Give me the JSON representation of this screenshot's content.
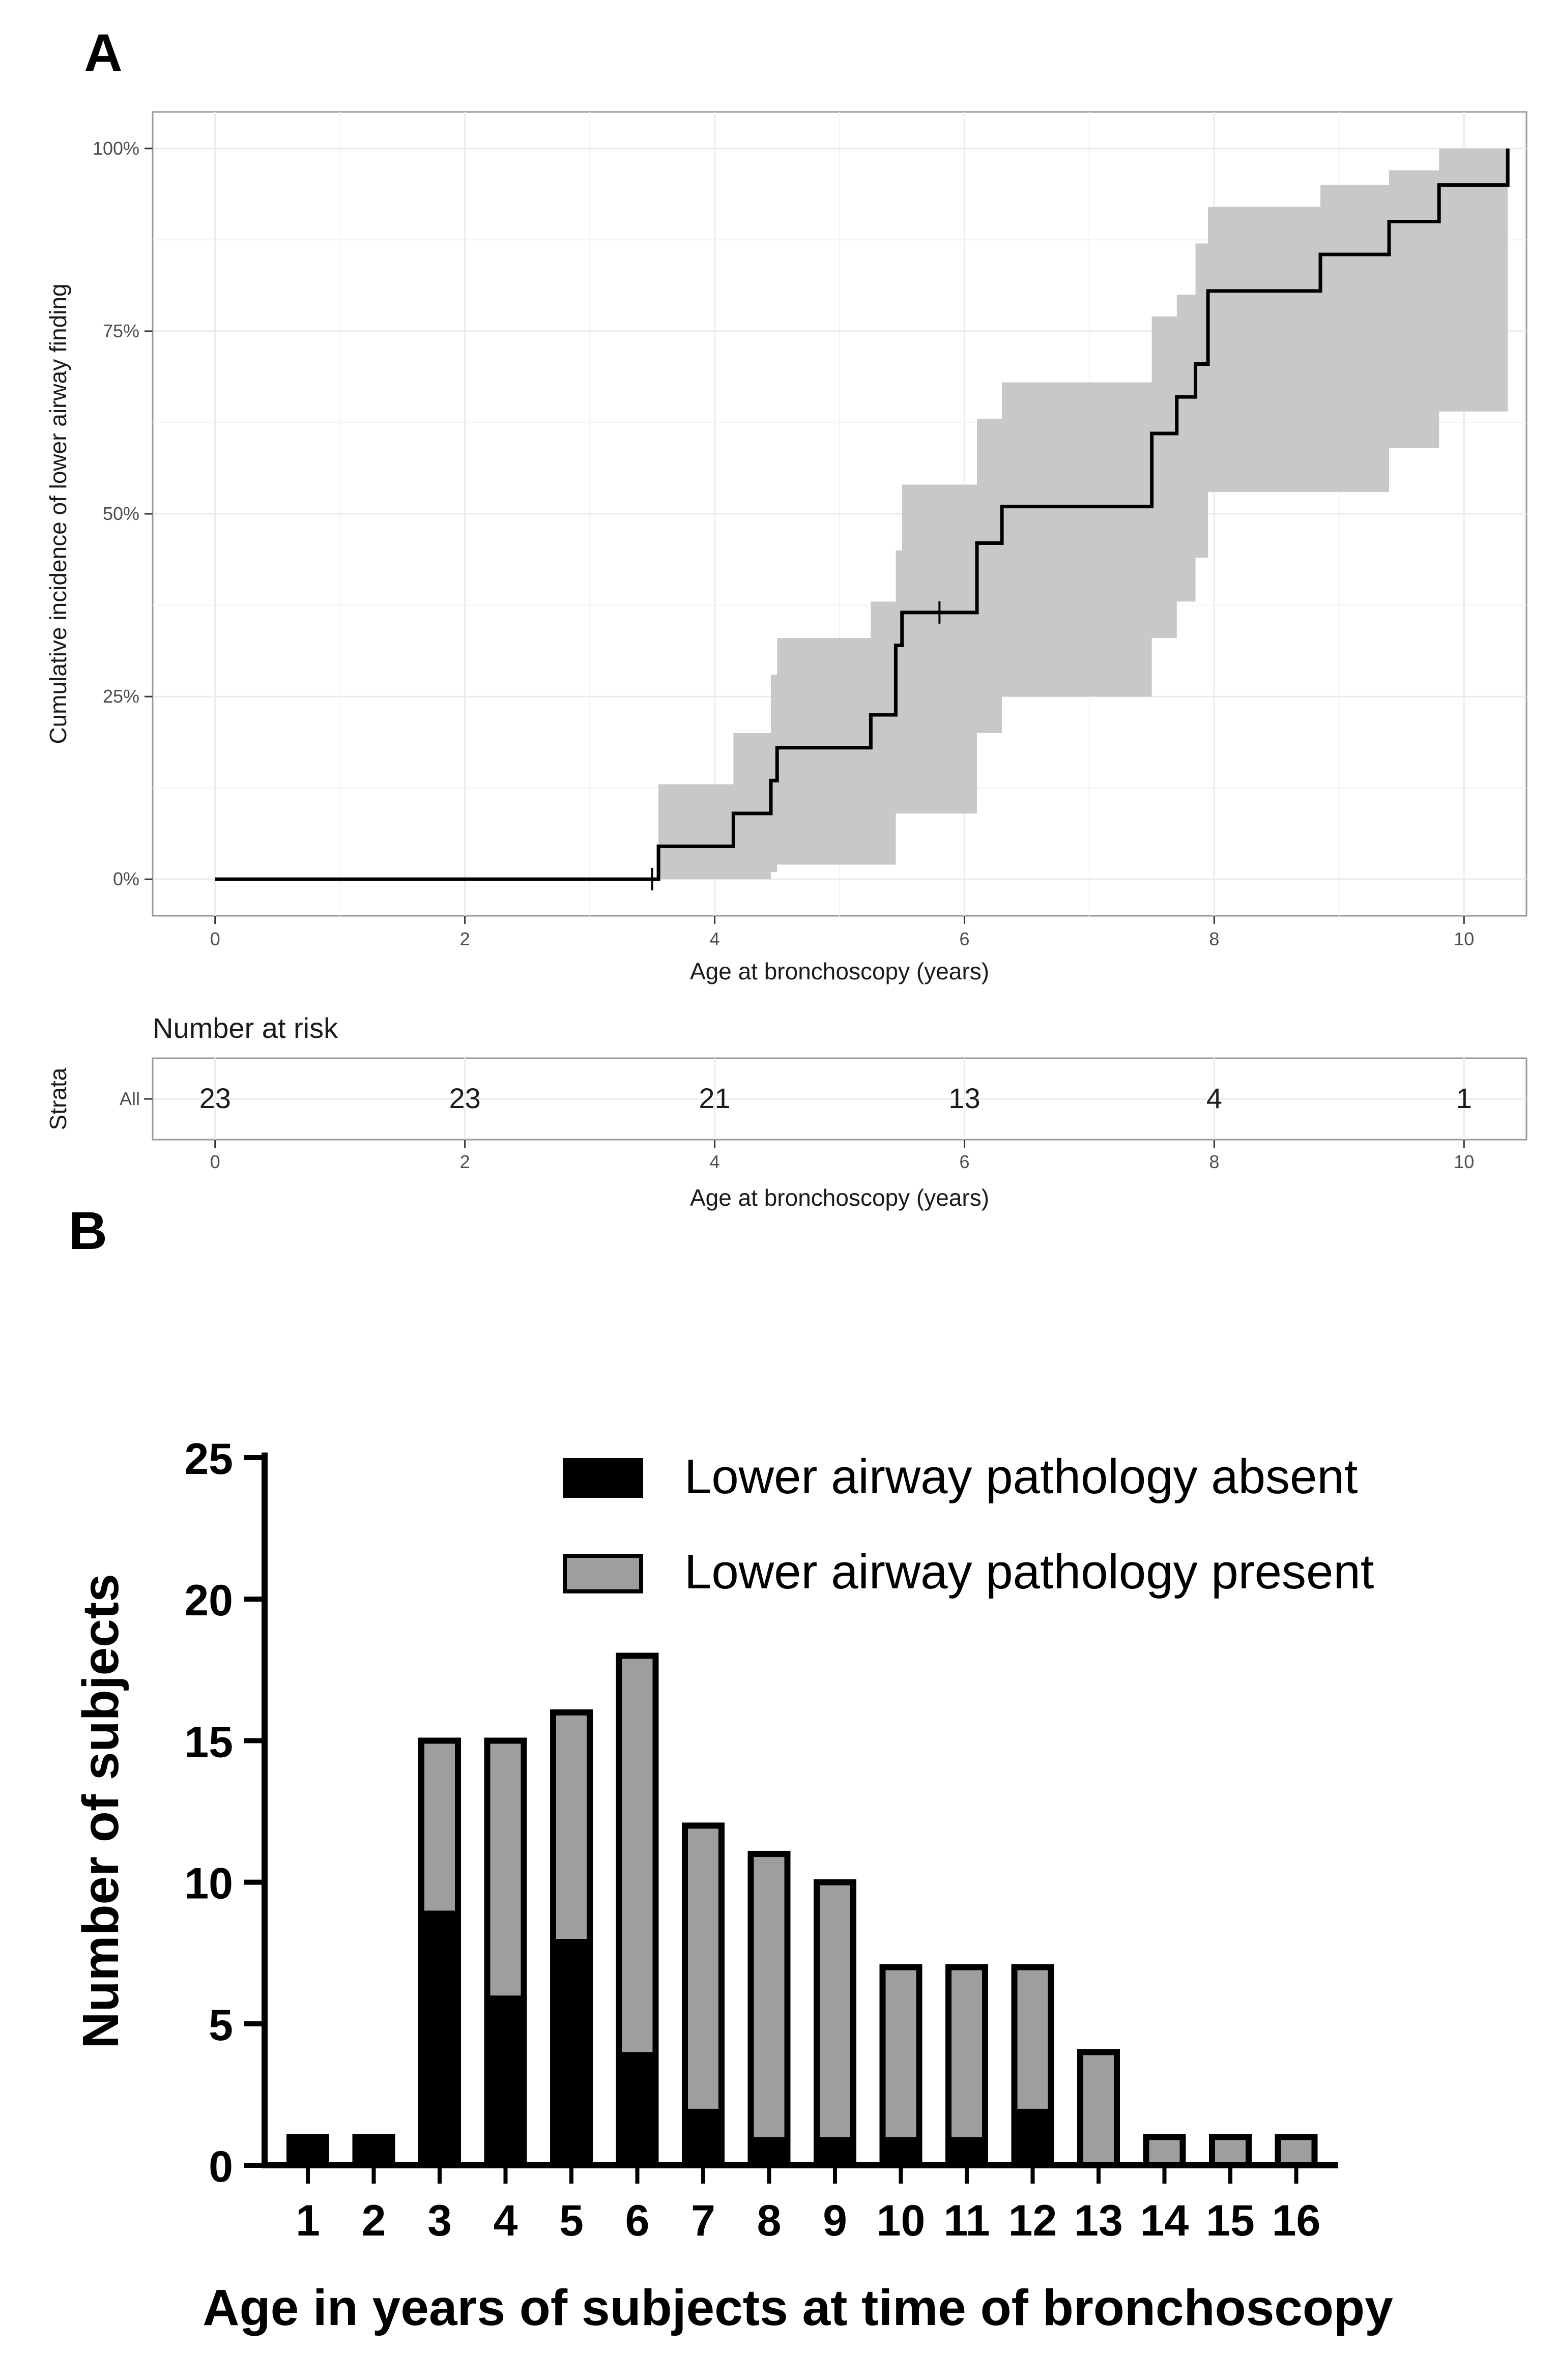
{
  "figure": {
    "panel_a_label": "A",
    "panel_b_label": "B"
  },
  "chart_data": [
    {
      "type": "line",
      "subtype": "step-with-confidence-band",
      "title": "",
      "xlabel": "Age at bronchoscopy (years)",
      "ylabel": "Cumulative incidence of lower airway finding",
      "xlim": [
        -0.5,
        10.5
      ],
      "ylim": [
        -0.05,
        1.05
      ],
      "xticks": [
        0,
        2,
        4,
        6,
        8,
        10
      ],
      "xtick_labels": [
        "0",
        "2",
        "4",
        "6",
        "8",
        "10"
      ],
      "yticks": [
        0,
        0.25,
        0.5,
        0.75,
        1.0
      ],
      "ytick_labels": [
        "0%",
        "25%",
        "50%",
        "75%",
        "100%"
      ],
      "grid": true,
      "series": [
        {
          "name": "All",
          "steps_x": [
            0,
            3.55,
            4.15,
            4.45,
            4.5,
            5.25,
            5.45,
            5.5,
            6.1,
            6.3,
            7.5,
            7.7,
            7.85,
            7.95,
            8.85,
            9.4,
            9.8,
            10.35
          ],
          "steps_y": [
            0,
            0.045,
            0.09,
            0.135,
            0.18,
            0.225,
            0.32,
            0.365,
            0.46,
            0.51,
            0.61,
            0.66,
            0.705,
            0.805,
            0.855,
            0.9,
            0.95,
            1.0
          ],
          "x_end": 10.35,
          "censor_x": [
            3.5,
            5.8
          ],
          "band_lower": [
            0,
            0,
            0,
            0.01,
            0.02,
            0.02,
            0.09,
            0.09,
            0.2,
            0.25,
            0.33,
            0.38,
            0.44,
            0.53,
            0.53,
            0.59,
            0.64,
            0.67
          ],
          "band_upper": [
            0,
            0.13,
            0.2,
            0.28,
            0.33,
            0.38,
            0.45,
            0.54,
            0.63,
            0.68,
            0.77,
            0.8,
            0.87,
            0.92,
            0.95,
            0.97,
            1.0,
            1.0
          ]
        }
      ],
      "risk_table": {
        "title": "Number at risk",
        "strata_label": "Strata",
        "row_label": "All",
        "times": [
          0,
          2,
          4,
          6,
          8,
          10
        ],
        "tick_labels": [
          "0",
          "2",
          "4",
          "6",
          "8",
          "10"
        ],
        "values": [
          "23",
          "23",
          "21",
          "13",
          "4",
          "1"
        ],
        "xlabel": "Age at bronchoscopy (years)"
      }
    },
    {
      "type": "bar",
      "subtype": "stacked",
      "title": "",
      "xlabel": "Age in years of subjects at time of bronchoscopy",
      "ylabel": "Number of subjects",
      "categories": [
        "1",
        "2",
        "3",
        "4",
        "5",
        "6",
        "7",
        "8",
        "9",
        "10",
        "11",
        "12",
        "13",
        "14",
        "15",
        "16"
      ],
      "ylim": [
        0,
        25
      ],
      "yticks": [
        "0",
        "5",
        "10",
        "15",
        "20",
        "25"
      ],
      "legend_position": "top-right",
      "series": [
        {
          "name": "Lower airway pathology absent",
          "color": "#000000",
          "values": [
            1,
            1,
            9,
            6,
            8,
            4,
            2,
            1,
            1,
            1,
            1,
            2,
            0,
            0,
            0,
            0
          ]
        },
        {
          "name": "Lower airway pathology present",
          "color": "#9e9e9e",
          "values": [
            0,
            0,
            6,
            9,
            8,
            14,
            10,
            10,
            9,
            6,
            6,
            5,
            4,
            1,
            1,
            1
          ]
        }
      ]
    }
  ],
  "colors": {
    "band_fill": "#c8c8c8",
    "grid": "#ebebeb",
    "axis_text": "#4d4d4d",
    "bar_outline": "#000000"
  }
}
